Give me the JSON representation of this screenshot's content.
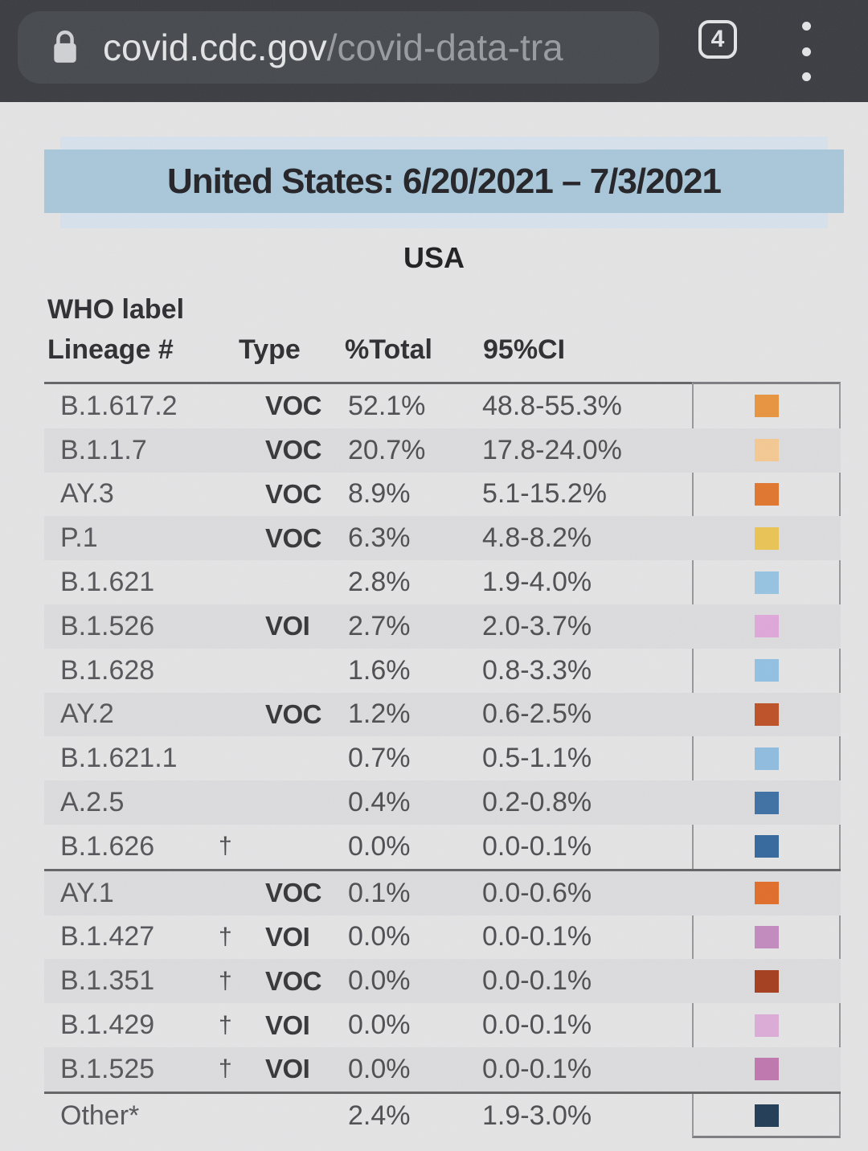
{
  "browser": {
    "url_host": "covid.cdc.gov",
    "url_path": "/covid-data-tra",
    "tab_count": "4"
  },
  "page": {
    "title": "United States: 6/20/2021 – 7/3/2021",
    "region_label": "USA"
  },
  "table": {
    "headers": {
      "who": "WHO label",
      "lineage": "Lineage #",
      "type": "Type",
      "total": "%Total",
      "ci": "95%CI"
    },
    "groups": [
      {
        "rows": [
          {
            "lineage": "B.1.617.2",
            "dagger": "",
            "type": "VOC",
            "total": "52.1%",
            "ci": "48.8-55.3%",
            "color": "#e8943e"
          },
          {
            "lineage": "B.1.1.7",
            "dagger": "",
            "type": "VOC",
            "total": "20.7%",
            "ci": "17.8-24.0%",
            "color": "#f4c892"
          },
          {
            "lineage": "AY.3",
            "dagger": "",
            "type": "VOC",
            "total": "8.9%",
            "ci": "5.1-15.2%",
            "color": "#e0762e"
          },
          {
            "lineage": "P.1",
            "dagger": "",
            "type": "VOC",
            "total": "6.3%",
            "ci": "4.8-8.2%",
            "color": "#e9c455"
          },
          {
            "lineage": "B.1.621",
            "dagger": "",
            "type": "",
            "total": "2.8%",
            "ci": "1.9-4.0%",
            "color": "#96c3e2"
          },
          {
            "lineage": "B.1.526",
            "dagger": "",
            "type": "VOI",
            "total": "2.7%",
            "ci": "2.0-3.7%",
            "color": "#dfa7da"
          },
          {
            "lineage": "B.1.628",
            "dagger": "",
            "type": "",
            "total": "1.6%",
            "ci": "0.8-3.3%",
            "color": "#92c1e3"
          },
          {
            "lineage": "AY.2",
            "dagger": "",
            "type": "VOC",
            "total": "1.2%",
            "ci": "0.6-2.5%",
            "color": "#bd5026"
          },
          {
            "lineage": "B.1.621.1",
            "dagger": "",
            "type": "",
            "total": "0.7%",
            "ci": "0.5-1.1%",
            "color": "#8fbcdf"
          },
          {
            "lineage": "A.2.5",
            "dagger": "",
            "type": "",
            "total": "0.4%",
            "ci": "0.2-0.8%",
            "color": "#3e70a4"
          },
          {
            "lineage": "B.1.626",
            "dagger": "†",
            "type": "",
            "total": "0.0%",
            "ci": "0.0-0.1%",
            "color": "#35689e"
          }
        ]
      },
      {
        "rows": [
          {
            "lineage": "AY.1",
            "dagger": "",
            "type": "VOC",
            "total": "0.1%",
            "ci": "0.0-0.6%",
            "color": "#e16d2a"
          },
          {
            "lineage": "B.1.427",
            "dagger": "†",
            "type": "VOI",
            "total": "0.0%",
            "ci": "0.0-0.1%",
            "color": "#c38abe"
          },
          {
            "lineage": "B.1.351",
            "dagger": "†",
            "type": "VOC",
            "total": "0.0%",
            "ci": "0.0-0.1%",
            "color": "#a43e1e"
          },
          {
            "lineage": "B.1.429",
            "dagger": "†",
            "type": "VOI",
            "total": "0.0%",
            "ci": "0.0-0.1%",
            "color": "#dcabd7"
          },
          {
            "lineage": "B.1.525",
            "dagger": "†",
            "type": "VOI",
            "total": "0.0%",
            "ci": "0.0-0.1%",
            "color": "#bf77ae"
          }
        ]
      },
      {
        "rows": [
          {
            "lineage": "Other*",
            "dagger": "",
            "type": "",
            "total": "2.4%",
            "ci": "1.9-3.0%",
            "color": "#203c55"
          }
        ]
      }
    ]
  },
  "colors": {
    "chrome_bg": "#3a3c41",
    "pill_bg": "#46494e",
    "page_bg": "#e4e4e5",
    "band_blue": "#a9c7da",
    "band_strip_blue": "#d7e2ed",
    "stripe_gray": "#dcdcde"
  }
}
